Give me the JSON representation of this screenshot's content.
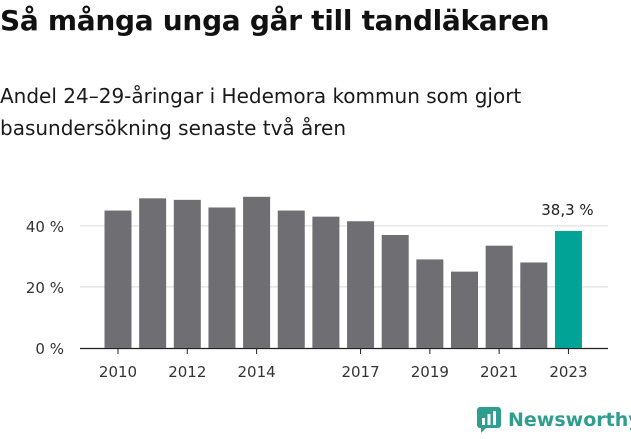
{
  "title": "Så många unga går till tandläkaren",
  "subtitle": "Andel 24–29-åringar i Hedemora kommun som gjort basundersökning senaste två åren",
  "brand": "Newsworthy",
  "colors": {
    "bar": "#6f6e73",
    "highlight": "#00a396",
    "grid": "#d9d9d9",
    "axis": "#222222",
    "brand": "#2e9e8e"
  },
  "chart_data": {
    "type": "bar",
    "categories": [
      "2010",
      "2011",
      "2012",
      "2013",
      "2014",
      "2015",
      "2016",
      "2017",
      "2018",
      "2019",
      "2020",
      "2021",
      "2022",
      "2023"
    ],
    "values": [
      45.0,
      49.0,
      48.5,
      46.0,
      49.5,
      45.0,
      43.0,
      41.5,
      37.0,
      29.0,
      25.0,
      33.5,
      28.0,
      38.3
    ],
    "highlight_index": 13,
    "data_labels": [
      {
        "index": 13,
        "text": "38,3 %"
      }
    ],
    "x_tick_labels": [
      "2010",
      "2012",
      "2014",
      "2017",
      "2019",
      "2021",
      "2023"
    ],
    "y_ticks": [
      {
        "value": 0,
        "label": "0 %"
      },
      {
        "value": 20,
        "label": "20 %"
      },
      {
        "value": 40,
        "label": "40 %"
      }
    ],
    "ylim": [
      0,
      55
    ],
    "grid": true,
    "xlabel": "",
    "ylabel": ""
  }
}
